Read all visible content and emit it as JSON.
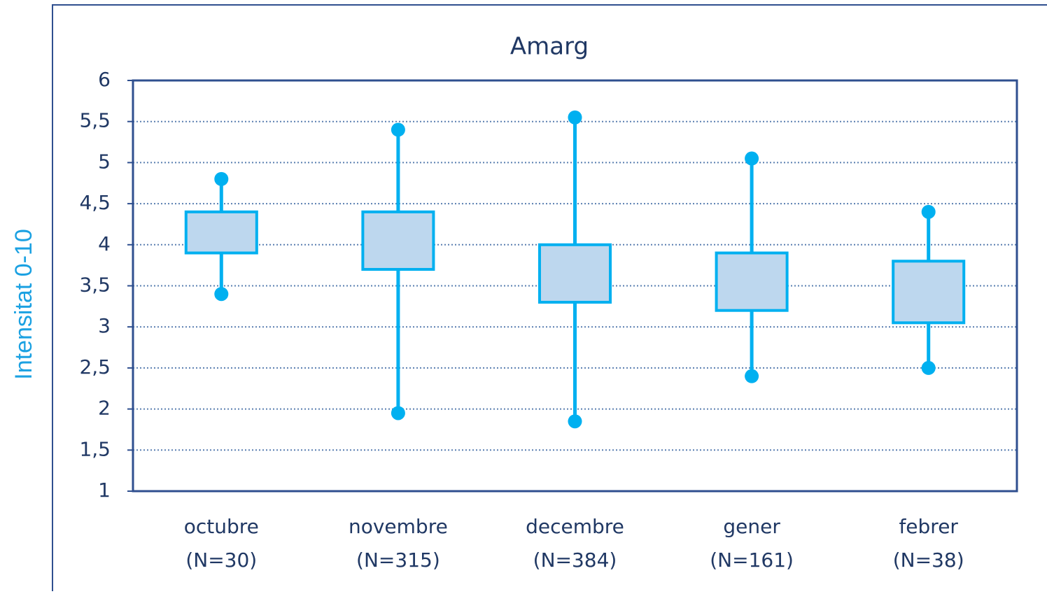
{
  "chart_data": {
    "type": "box",
    "title": "Amarg",
    "y_label": "Intensitat 0-10",
    "categories": [
      "octubre",
      "novembre",
      "decembre",
      "gener",
      "febrer"
    ],
    "n_labels": [
      "(N=30)",
      "(N=315)",
      "(N=384)",
      "(N=161)",
      "(N=38)"
    ],
    "max": [
      4.8,
      5.4,
      5.55,
      5.05,
      4.4
    ],
    "q3": [
      4.4,
      4.4,
      4.0,
      3.9,
      3.8
    ],
    "q1": [
      3.9,
      3.7,
      3.3,
      3.2,
      3.05
    ],
    "min": [
      3.4,
      1.95,
      1.85,
      2.4,
      2.5
    ],
    "color": "#00b0f0",
    "box_fill": "#bdd7ee",
    "ylim": [
      1,
      6
    ],
    "yticks": [
      1,
      {
        "value": 1.5,
        "label": "1,5"
      },
      2,
      {
        "value": 2.5,
        "label": "2,5"
      },
      3,
      {
        "value": 3.5,
        "label": "3,5"
      },
      4,
      {
        "value": 4.5,
        "label": "4,5"
      },
      5,
      {
        "value": 5.5,
        "label": "5,5"
      },
      6
    ],
    "grid": true
  }
}
